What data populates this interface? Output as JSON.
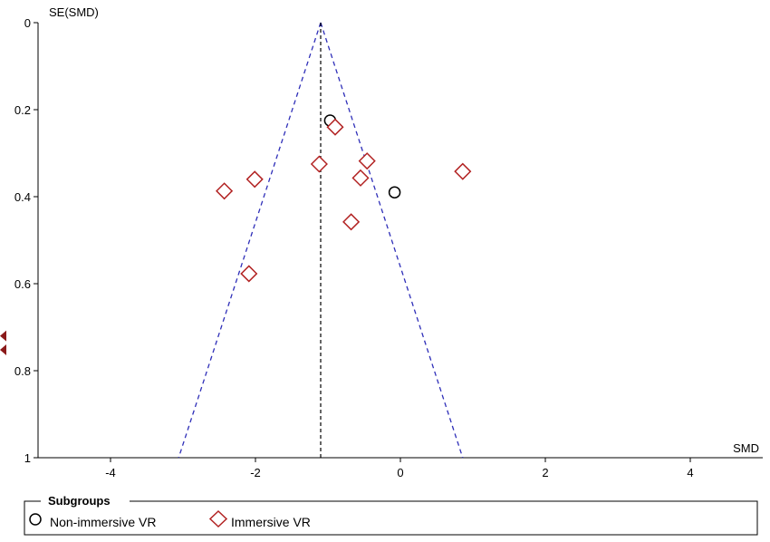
{
  "chart_data": {
    "type": "scatter",
    "title": "",
    "xlabel": "SMD",
    "ylabel": "SE(SMD)",
    "xlim": [
      -5,
      5
    ],
    "ylim": [
      0,
      1
    ],
    "y_reversed": true,
    "x_ticks": [
      -4,
      -2,
      0,
      2,
      4
    ],
    "y_ticks": [
      0,
      0.2,
      0.4,
      0.6,
      0.8,
      1
    ],
    "pooled_estimate": -1.1,
    "funnel_bounds": {
      "apex_se": 0,
      "bottom_se": 1,
      "bottom_left_x": -3.06,
      "bottom_right_x": 0.86
    },
    "series": [
      {
        "name": "Non-immersive VR",
        "marker": "circle",
        "color": "#000000",
        "points": [
          {
            "x": -0.97,
            "y": 0.225
          },
          {
            "x": -0.08,
            "y": 0.39
          }
        ]
      },
      {
        "name": "Immersive VR",
        "marker": "diamond",
        "color": "#b22222",
        "points": [
          {
            "x": -0.9,
            "y": 0.24
          },
          {
            "x": -1.12,
            "y": 0.325
          },
          {
            "x": -0.46,
            "y": 0.318
          },
          {
            "x": 0.86,
            "y": 0.342
          },
          {
            "x": -2.01,
            "y": 0.36
          },
          {
            "x": -2.43,
            "y": 0.387
          },
          {
            "x": -0.55,
            "y": 0.357
          },
          {
            "x": -0.68,
            "y": 0.458
          },
          {
            "x": -2.09,
            "y": 0.577
          }
        ]
      }
    ],
    "offscale_markers": [
      {
        "y": 0.72,
        "color": "#8b1a1a"
      },
      {
        "y": 0.752,
        "color": "#8b1a1a"
      }
    ],
    "legend": {
      "title": "Subgroups",
      "placement": "bottom"
    }
  }
}
